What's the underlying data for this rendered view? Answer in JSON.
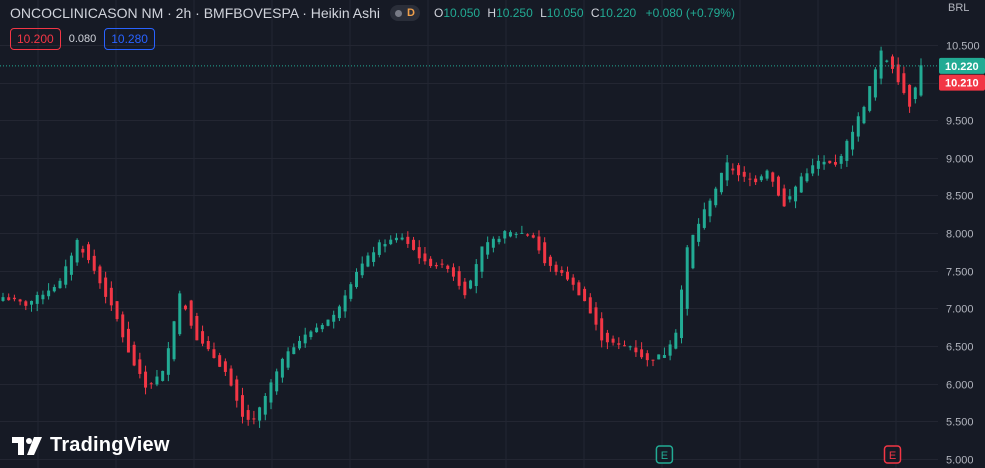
{
  "header": {
    "symbol": "ONCOCLINICASON NM · 2h · BMFBOVESPA · Heikin Ashi",
    "market_flag": "D",
    "open_label": "O",
    "open_value": "10.050",
    "high_label": "H",
    "high_value": "10.250",
    "low_label": "L",
    "low_value": "10.050",
    "close_label": "C",
    "close_value": "10.220",
    "change": "+0.080 (+0.79%)"
  },
  "trade": {
    "bid": "10.200",
    "spread": "0.080",
    "ask": "10.280"
  },
  "currency": "BRL",
  "logo_text": "TradingView",
  "colors": {
    "up": "#22ab94",
    "down": "#f23645",
    "background": "#161a25",
    "grid": "#232632",
    "axis_text": "#b2b5be"
  },
  "chart_data": {
    "type": "candlestick",
    "style": "Heikin Ashi",
    "interval": "2h",
    "y_axis": {
      "range": [
        5.0,
        10.65
      ],
      "ticks": [
        "10.500",
        "10.000",
        "9.500",
        "9.000",
        "8.500",
        "8.000",
        "7.500",
        "7.000",
        "6.500",
        "6.000",
        "5.500",
        "5.000"
      ]
    },
    "grid": true,
    "current_price_line": 10.22,
    "price_labels": [
      {
        "text": "10.220",
        "value": 10.22,
        "color": "#22ab94"
      },
      {
        "text": "10.210",
        "value": 10.21,
        "color": "#f23645"
      }
    ],
    "event_markers": [
      {
        "label": "E",
        "color": "#22ab94",
        "bar": 116
      },
      {
        "label": "E",
        "color": "#f23645",
        "bar": 156
      }
    ],
    "close_path": [
      [
        0,
        7.15
      ],
      [
        4,
        7.05
      ],
      [
        10,
        7.35
      ],
      [
        13,
        7.9
      ],
      [
        16,
        7.5
      ],
      [
        20,
        6.85
      ],
      [
        22,
        6.4
      ],
      [
        25,
        5.95
      ],
      [
        28,
        6.15
      ],
      [
        31,
        7.2
      ],
      [
        34,
        6.6
      ],
      [
        37,
        6.35
      ],
      [
        39,
        6.15
      ],
      [
        42,
        5.55
      ],
      [
        44,
        5.5
      ],
      [
        47,
        6.0
      ],
      [
        50,
        6.45
      ],
      [
        54,
        6.7
      ],
      [
        58,
        6.9
      ],
      [
        62,
        7.5
      ],
      [
        66,
        7.85
      ],
      [
        70,
        7.95
      ],
      [
        74,
        7.6
      ],
      [
        78,
        7.55
      ],
      [
        81,
        7.2
      ],
      [
        84,
        7.8
      ],
      [
        88,
        8.0
      ],
      [
        91,
        8.0
      ],
      [
        93,
        7.95
      ],
      [
        95,
        7.6
      ],
      [
        99,
        7.4
      ],
      [
        102,
        7.1
      ],
      [
        105,
        6.6
      ],
      [
        108,
        6.5
      ],
      [
        110,
        6.5
      ],
      [
        113,
        6.3
      ],
      [
        116,
        6.4
      ],
      [
        118,
        6.7
      ],
      [
        120,
        7.8
      ],
      [
        123,
        8.3
      ],
      [
        125,
        8.6
      ],
      [
        127,
        8.95
      ],
      [
        129,
        8.75
      ],
      [
        132,
        8.7
      ],
      [
        134,
        8.85
      ],
      [
        137,
        8.35
      ],
      [
        140,
        8.75
      ],
      [
        143,
        8.95
      ],
      [
        146,
        8.9
      ],
      [
        148,
        9.2
      ],
      [
        151,
        9.7
      ],
      [
        154,
        10.4
      ],
      [
        156,
        10.2
      ],
      [
        159,
        9.7
      ],
      [
        161,
        10.22
      ]
    ]
  }
}
